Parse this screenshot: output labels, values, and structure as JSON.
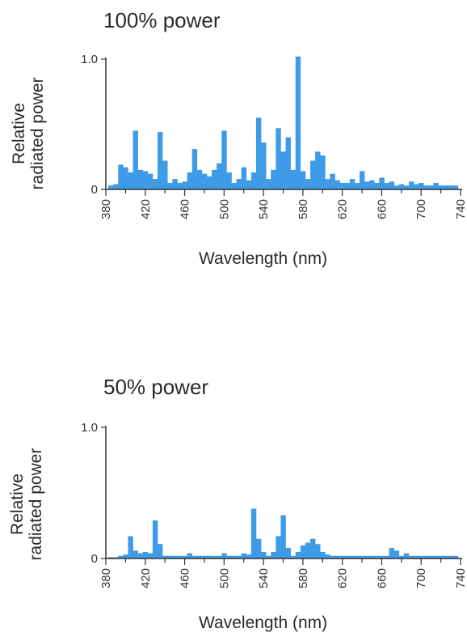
{
  "chart_data": [
    {
      "type": "bar",
      "title": "100% power",
      "xlabel": "Wavelength (nm)",
      "ylabel_lines": [
        "Relative",
        "radiated power"
      ],
      "xlim": [
        380,
        740
      ],
      "ylim": [
        0,
        1.0
      ],
      "xticks": [
        "380",
        "420",
        "460",
        "500",
        "540",
        "580",
        "620",
        "660",
        "700",
        "740"
      ],
      "yticks": [
        "0",
        "1.0"
      ],
      "bar_width_nm": 5,
      "bar_color": "#3d9be8",
      "x": [
        385,
        390,
        395,
        400,
        405,
        410,
        415,
        420,
        425,
        430,
        435,
        440,
        445,
        450,
        455,
        460,
        465,
        470,
        475,
        480,
        485,
        490,
        495,
        500,
        505,
        510,
        515,
        520,
        525,
        530,
        535,
        540,
        545,
        550,
        555,
        560,
        565,
        570,
        575,
        580,
        585,
        590,
        595,
        600,
        605,
        610,
        615,
        620,
        625,
        630,
        635,
        640,
        645,
        650,
        655,
        660,
        665,
        670,
        675,
        680,
        685,
        690,
        695,
        700,
        705,
        710,
        715,
        720,
        725,
        730,
        735
      ],
      "values": [
        0.03,
        0.04,
        0.19,
        0.17,
        0.13,
        0.45,
        0.15,
        0.14,
        0.12,
        0.08,
        0.44,
        0.22,
        0.05,
        0.08,
        0.05,
        0.06,
        0.13,
        0.31,
        0.15,
        0.12,
        0.1,
        0.15,
        0.2,
        0.45,
        0.13,
        0.05,
        0.08,
        0.17,
        0.07,
        0.13,
        0.55,
        0.36,
        0.08,
        0.15,
        0.47,
        0.29,
        0.4,
        0.15,
        1.02,
        0.14,
        0.08,
        0.22,
        0.29,
        0.26,
        0.08,
        0.12,
        0.07,
        0.05,
        0.05,
        0.08,
        0.05,
        0.14,
        0.06,
        0.07,
        0.05,
        0.09,
        0.05,
        0.06,
        0.03,
        0.04,
        0.03,
        0.06,
        0.04,
        0.05,
        0.03,
        0.03,
        0.05,
        0.03,
        0.03,
        0.03,
        0.03
      ]
    },
    {
      "type": "bar",
      "title": "50% power",
      "xlabel": "Wavelength (nm)",
      "ylabel_lines": [
        "Relative",
        "radiated power"
      ],
      "xlim": [
        380,
        740
      ],
      "ylim": [
        0,
        1.0
      ],
      "xticks": [
        "380",
        "420",
        "460",
        "500",
        "540",
        "580",
        "620",
        "660",
        "700",
        "740"
      ],
      "yticks": [
        "0",
        "1.0"
      ],
      "bar_width_nm": 5,
      "bar_color": "#3d9be8",
      "x": [
        385,
        390,
        395,
        400,
        405,
        410,
        415,
        420,
        425,
        430,
        435,
        440,
        445,
        450,
        455,
        460,
        465,
        470,
        475,
        480,
        485,
        490,
        495,
        500,
        505,
        510,
        515,
        520,
        525,
        530,
        535,
        540,
        545,
        550,
        555,
        560,
        565,
        570,
        575,
        580,
        585,
        590,
        595,
        600,
        605,
        610,
        615,
        620,
        625,
        630,
        635,
        640,
        645,
        650,
        655,
        660,
        665,
        670,
        675,
        680,
        685,
        690,
        695,
        700,
        705,
        710,
        715,
        720,
        725,
        730,
        735
      ],
      "values": [
        0.01,
        0.01,
        0.02,
        0.03,
        0.17,
        0.06,
        0.04,
        0.05,
        0.04,
        0.29,
        0.11,
        0.02,
        0.02,
        0.02,
        0.02,
        0.02,
        0.04,
        0.02,
        0.02,
        0.02,
        0.02,
        0.02,
        0.02,
        0.04,
        0.02,
        0.02,
        0.02,
        0.04,
        0.03,
        0.38,
        0.15,
        0.05,
        0.02,
        0.05,
        0.17,
        0.33,
        0.08,
        0.02,
        0.05,
        0.1,
        0.12,
        0.15,
        0.11,
        0.05,
        0.03,
        0.02,
        0.02,
        0.02,
        0.02,
        0.02,
        0.02,
        0.02,
        0.02,
        0.02,
        0.02,
        0.02,
        0.02,
        0.08,
        0.06,
        0.02,
        0.04,
        0.02,
        0.02,
        0.02,
        0.02,
        0.02,
        0.02,
        0.02,
        0.02,
        0.02,
        0.02
      ]
    }
  ]
}
